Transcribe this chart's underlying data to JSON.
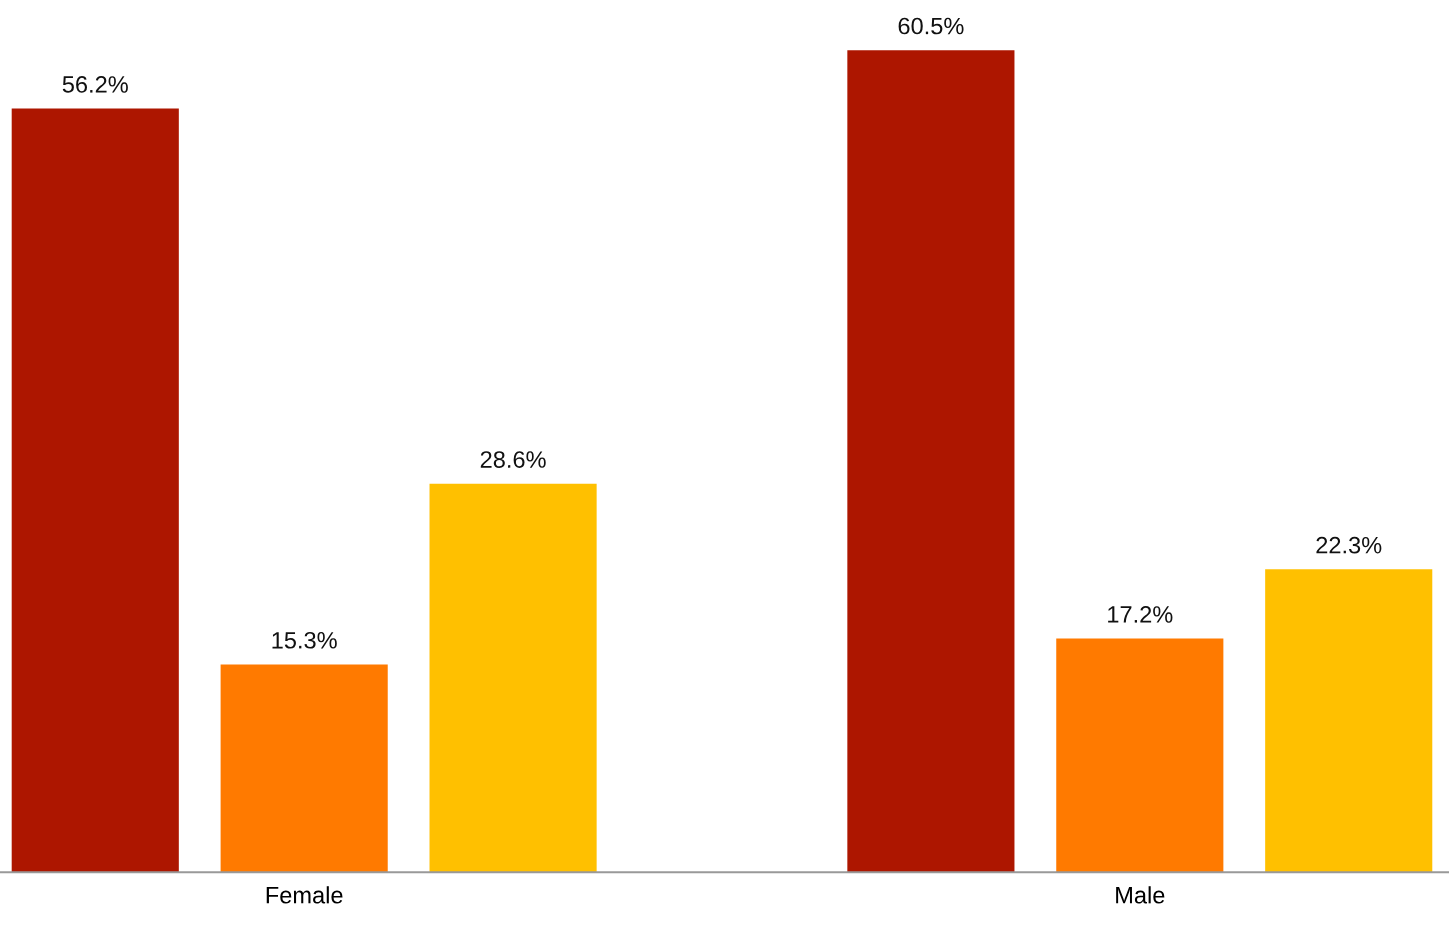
{
  "chart_data": {
    "type": "bar",
    "categories": [
      "Female",
      "Male"
    ],
    "series": [
      {
        "color": "#ad1600",
        "values": [
          56.2,
          60.5
        ],
        "value_labels": [
          "56.2%",
          "60.5%"
        ]
      },
      {
        "color": "#ff7a00",
        "values": [
          15.3,
          17.2
        ],
        "value_labels": [
          "15.3%",
          "17.2%"
        ]
      },
      {
        "color": "#ffc000",
        "values": [
          28.6,
          22.3
        ],
        "value_labels": [
          "28.6%",
          "22.3%"
        ]
      }
    ],
    "grid": false
  }
}
